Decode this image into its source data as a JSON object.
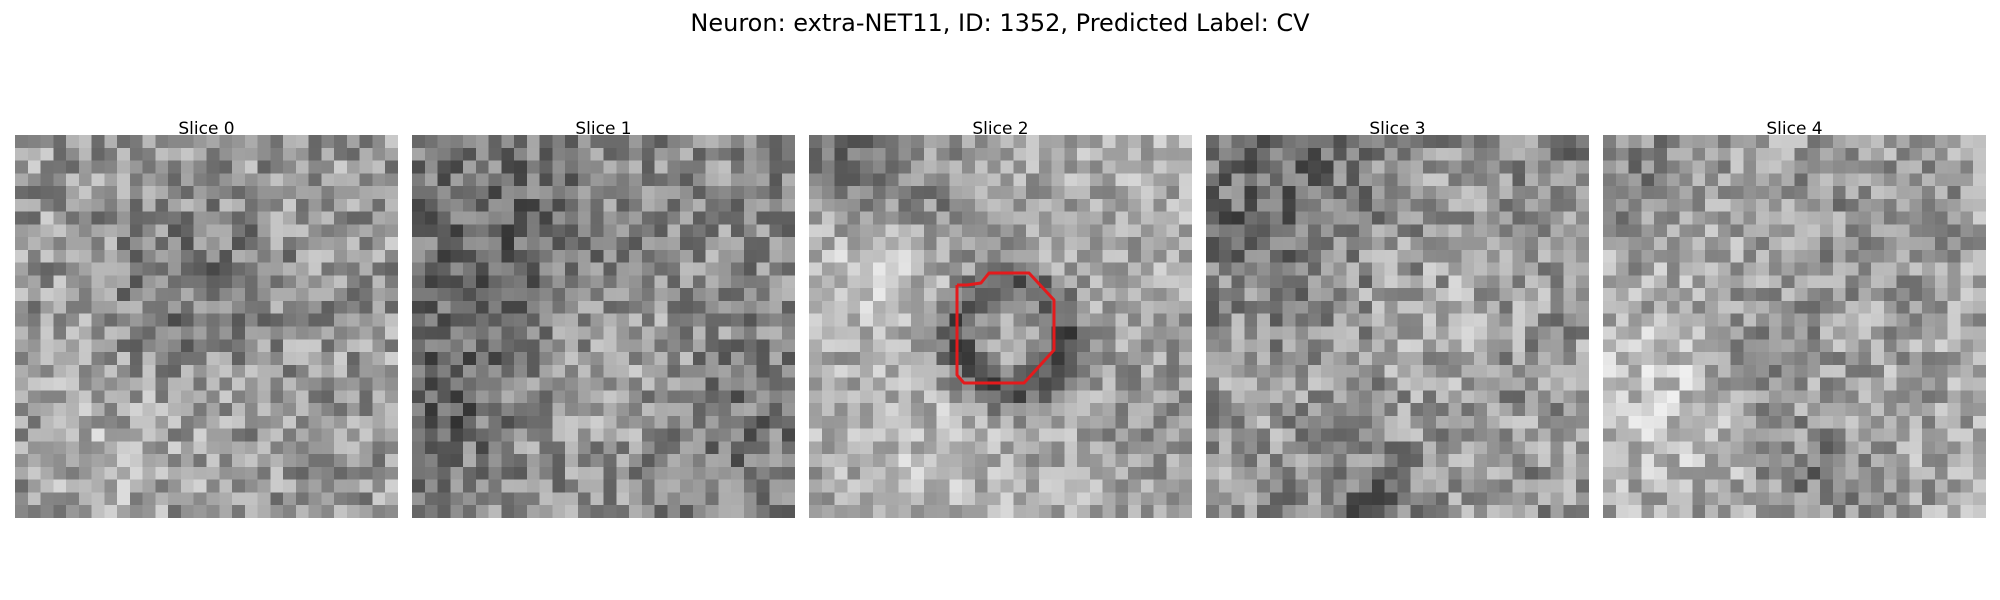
{
  "figure": {
    "title": "Neuron: extra-NET11, ID: 1352, Predicted Label: CV"
  },
  "panels": [
    {
      "title": "Slice 0"
    },
    {
      "title": "Slice 1"
    },
    {
      "title": "Slice 2"
    },
    {
      "title": "Slice 3"
    },
    {
      "title": "Slice 4"
    }
  ],
  "colors": {
    "contour": "#e41a1c",
    "background": "#ffffff",
    "colormap": "gray"
  }
}
